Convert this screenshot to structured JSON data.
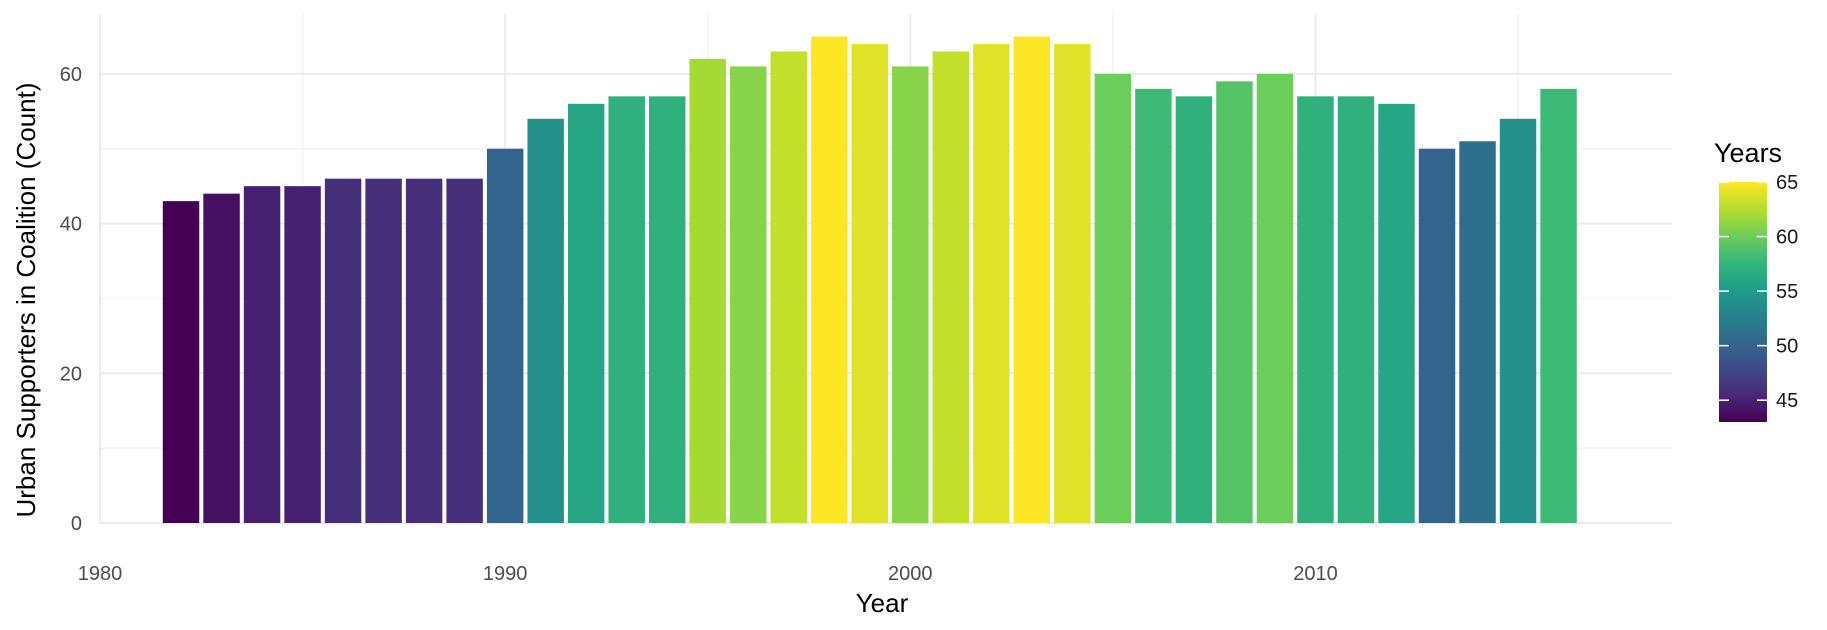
{
  "chart_data": {
    "type": "bar",
    "xlabel": "Year",
    "ylabel": "Urban Supporters in Coalition (Count)",
    "xlim": [
      1980,
      2018.8
    ],
    "ylim": [
      0,
      68
    ],
    "x_ticks": [
      1980,
      1990,
      2000,
      2010
    ],
    "y_ticks": [
      0,
      20,
      40,
      60
    ],
    "grid": true,
    "x": [
      1982,
      1983,
      1984,
      1985,
      1986,
      1987,
      1988,
      1989,
      1990,
      1991,
      1992,
      1993,
      1994,
      1995,
      1996,
      1997,
      1998,
      1999,
      2000,
      2001,
      2002,
      2003,
      2004,
      2005,
      2006,
      2007,
      2008,
      2009,
      2010,
      2011,
      2012,
      2013,
      2014,
      2015,
      2016
    ],
    "values": [
      43,
      44,
      45,
      45,
      46,
      46,
      46,
      46,
      50,
      54,
      56,
      57,
      57,
      62,
      61,
      63,
      65,
      64,
      61,
      63,
      64,
      65,
      64,
      60,
      58,
      57,
      59,
      60,
      57,
      57,
      56,
      50,
      51,
      54,
      58
    ],
    "legend": {
      "title": "Years",
      "placement": "right",
      "range": [
        43,
        65
      ],
      "ticks": [
        45,
        50,
        55,
        60,
        65
      ]
    },
    "colormap": [
      "#440154",
      "#482878",
      "#3e4a89",
      "#31688e",
      "#26828e",
      "#1f9e89",
      "#35b779",
      "#6ece58",
      "#b5de2b",
      "#fde725"
    ]
  }
}
